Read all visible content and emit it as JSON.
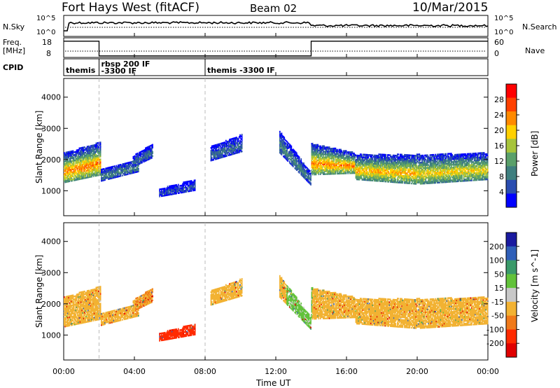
{
  "header": {
    "station": "Fort Hays West (fitACF)",
    "beam": "Beam 02",
    "date": "10/Mar/2015"
  },
  "status_panels": {
    "nsky_label": "N.Sky",
    "nsky_ticks": [
      "10^5",
      "10^0"
    ],
    "nsearch_label": "N.Search",
    "nsearch_ticks": [
      "10^5",
      "10^0"
    ],
    "freq_label": "Freq.",
    "freq_unit": "[MHz]",
    "freq_ticks": [
      "18",
      "8"
    ],
    "nave_label": "Nave",
    "nave_ticks": [
      "60",
      "0"
    ],
    "cpid_label": "CPID",
    "cpid_segments": [
      {
        "start_hour": 0.0,
        "label": "themis",
        "label2": ""
      },
      {
        "start_hour": 2.0,
        "label": "rbsp 200 IF",
        "label2": "-3300 IF"
      },
      {
        "start_hour": 8.0,
        "label": "themis -3300 IF",
        "label2": ""
      }
    ],
    "freq_steps_mhz": [
      {
        "from": 0.0,
        "to": 2.0,
        "value": 17
      },
      {
        "from": 2.0,
        "to": 14.0,
        "value": 9.5
      },
      {
        "from": 14.0,
        "to": 24.0,
        "value": 17
      }
    ]
  },
  "colorbars": {
    "power": {
      "label": "Power [dB]",
      "ticks": [
        "28",
        "24",
        "20",
        "16",
        "12",
        "8",
        "4"
      ],
      "tick_values": [
        28,
        24,
        20,
        16,
        12,
        8,
        4
      ],
      "range": [
        0,
        32
      ],
      "colors": [
        "#0000ff",
        "#2a4db0",
        "#3f7f7f",
        "#5aa06a",
        "#a7c43b",
        "#ffd000",
        "#ff8a00",
        "#ff4000",
        "#ff0000"
      ]
    },
    "velocity": {
      "label": "Velocity [m s^-1]",
      "ticks": [
        "200",
        "100",
        "50",
        "15",
        "-15",
        "-50",
        "-100",
        "-200"
      ],
      "colors": [
        "#1a1aa0",
        "#2f5fb8",
        "#3a9a6a",
        "#62c23a",
        "#c8c8c8",
        "#f2b233",
        "#f07a1a",
        "#ff2a00",
        "#e00000"
      ]
    }
  },
  "axes": {
    "ylabel": "Slant Range [km]",
    "yticks": [
      1000,
      2000,
      3000,
      4000
    ],
    "xlabel": "Time UT",
    "xticks": [
      "00:00",
      "04:00",
      "08:00",
      "12:00",
      "16:00",
      "20:00",
      "00:00"
    ]
  },
  "chart_data": {
    "type": "heatmap",
    "title": "Fort Hays West (fitACF)  Beam 02  10/Mar/2015",
    "xlabel": "Time UT",
    "ylabel": "Slant Range [km]",
    "xlim_hours": [
      0,
      24
    ],
    "ylim_km": [
      200,
      4600
    ],
    "power_bands": [
      {
        "start": 0.0,
        "end": 2.1,
        "lower_km": [
          1250,
          1500
        ],
        "upper_km": [
          2200,
          2550
        ],
        "peak_db": 24
      },
      {
        "start": 2.1,
        "end": 4.2,
        "lower_km": [
          1300,
          1600
        ],
        "upper_km": [
          1700,
          2000
        ],
        "peak_db": 10
      },
      {
        "start": 3.9,
        "end": 5.0,
        "lower_km": [
          1750,
          2050
        ],
        "upper_km": [
          2100,
          2500
        ],
        "peak_db": 8
      },
      {
        "start": 5.4,
        "end": 7.4,
        "lower_km": [
          800,
          1000
        ],
        "upper_km": [
          1050,
          1350
        ],
        "peak_db": 6
      },
      {
        "start": 8.3,
        "end": 10.1,
        "lower_km": [
          1950,
          2250
        ],
        "upper_km": [
          2400,
          2800
        ],
        "peak_db": 8
      },
      {
        "start": 12.2,
        "end": 14.0,
        "lower_km": [
          2200,
          1150
        ],
        "upper_km": [
          2900,
          1550
        ],
        "peak_db": 10
      },
      {
        "start": 14.0,
        "end": 16.5,
        "lower_km": [
          1500,
          1550
        ],
        "upper_km": [
          2500,
          2200
        ],
        "peak_db": 24
      },
      {
        "start": 16.5,
        "end": 20.0,
        "lower_km": [
          1350,
          1200
        ],
        "upper_km": [
          2150,
          2150
        ],
        "peak_db": 22
      },
      {
        "start": 20.0,
        "end": 24.0,
        "lower_km": [
          1200,
          1350
        ],
        "upper_km": [
          2150,
          2200
        ],
        "peak_db": 20
      }
    ],
    "velocity_dominant": [
      {
        "start": 0.0,
        "end": 2.1,
        "ms": 0
      },
      {
        "start": 4.0,
        "end": 5.0,
        "ms": -15
      },
      {
        "start": 5.4,
        "end": 7.4,
        "ms": -60
      },
      {
        "start": 8.3,
        "end": 10.1,
        "ms": 0
      },
      {
        "start": 12.6,
        "end": 14.0,
        "ms": 40
      },
      {
        "start": 14.0,
        "end": 24.0,
        "ms": 0
      }
    ]
  }
}
